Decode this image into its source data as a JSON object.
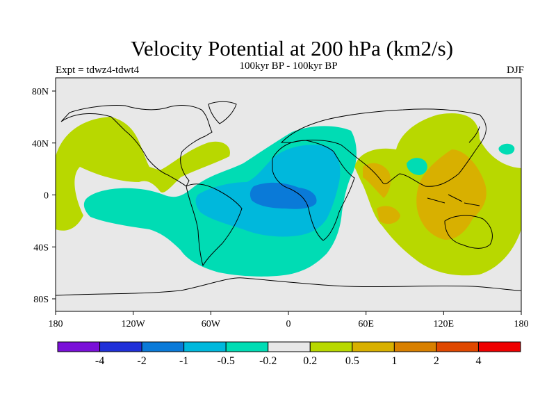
{
  "title": "Velocity Potential at 200 hPa (km2/s)",
  "subtitle": "100kyr BP - 100kyr BP",
  "left_note": "Expt = tdwz4-tdwt4",
  "right_note": "DJF",
  "map": {
    "projection": "cylindrical equidistant",
    "lon_range": [
      -180,
      180
    ],
    "lat_range": [
      -90,
      90
    ],
    "y_ticks": [
      "80N",
      "40N",
      "0",
      "40S",
      "80S"
    ],
    "x_ticks": [
      "180",
      "120W",
      "60W",
      "0",
      "60E",
      "120E",
      "180"
    ],
    "background_color": "#e8e8e8",
    "coastline_color": "#000000"
  },
  "colorbar": {
    "colors": [
      "#7a10d8",
      "#2030d8",
      "#0a7ad8",
      "#00b8dc",
      "#00dcb4",
      "#e8e8e8",
      "#b8d800",
      "#d8b000",
      "#d88000",
      "#e04800",
      "#ee0000"
    ],
    "labels": [
      "-4",
      "-2",
      "-1",
      "-0.5",
      "-0.2",
      "0.2",
      "0.5",
      "1",
      "2",
      "4"
    ]
  }
}
